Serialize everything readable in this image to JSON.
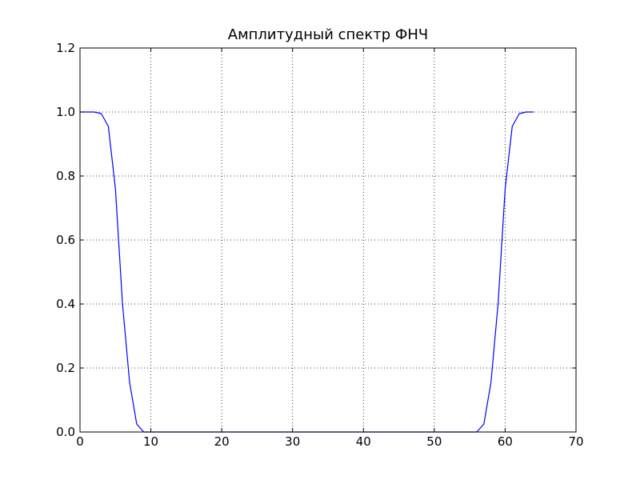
{
  "chart_data": {
    "type": "line",
    "title": "Амплитудный спектр ФНЧ",
    "xlabel": "",
    "ylabel": "",
    "xlim": [
      0,
      70
    ],
    "ylim": [
      0.0,
      1.2
    ],
    "x_ticks": [
      0,
      10,
      20,
      30,
      40,
      50,
      60,
      70
    ],
    "y_ticks": [
      0.0,
      0.2,
      0.4,
      0.6,
      0.8,
      1.0,
      1.2
    ],
    "x_tick_labels": [
      "0",
      "10",
      "20",
      "30",
      "40",
      "50",
      "60",
      "70"
    ],
    "y_tick_labels": [
      "0.0",
      "0.2",
      "0.4",
      "0.6",
      "0.8",
      "1.0",
      "1.2"
    ],
    "grid": true,
    "series": [
      {
        "color": "#0000ff",
        "x": [
          0,
          1,
          2,
          3,
          4,
          5,
          6,
          7,
          8,
          9,
          10,
          15,
          20,
          25,
          30,
          35,
          40,
          45,
          50,
          55,
          56,
          57,
          58,
          59,
          60,
          61,
          62,
          63,
          64
        ],
        "y": [
          1.0,
          1.0,
          1.0,
          0.995,
          0.955,
          0.76,
          0.4,
          0.155,
          0.025,
          0.0,
          0.0,
          0.0,
          0.0,
          0.0,
          0.0,
          0.0,
          0.0,
          0.0,
          0.0,
          0.0,
          0.0,
          0.025,
          0.155,
          0.4,
          0.76,
          0.955,
          0.995,
          1.0,
          1.0
        ]
      }
    ]
  }
}
